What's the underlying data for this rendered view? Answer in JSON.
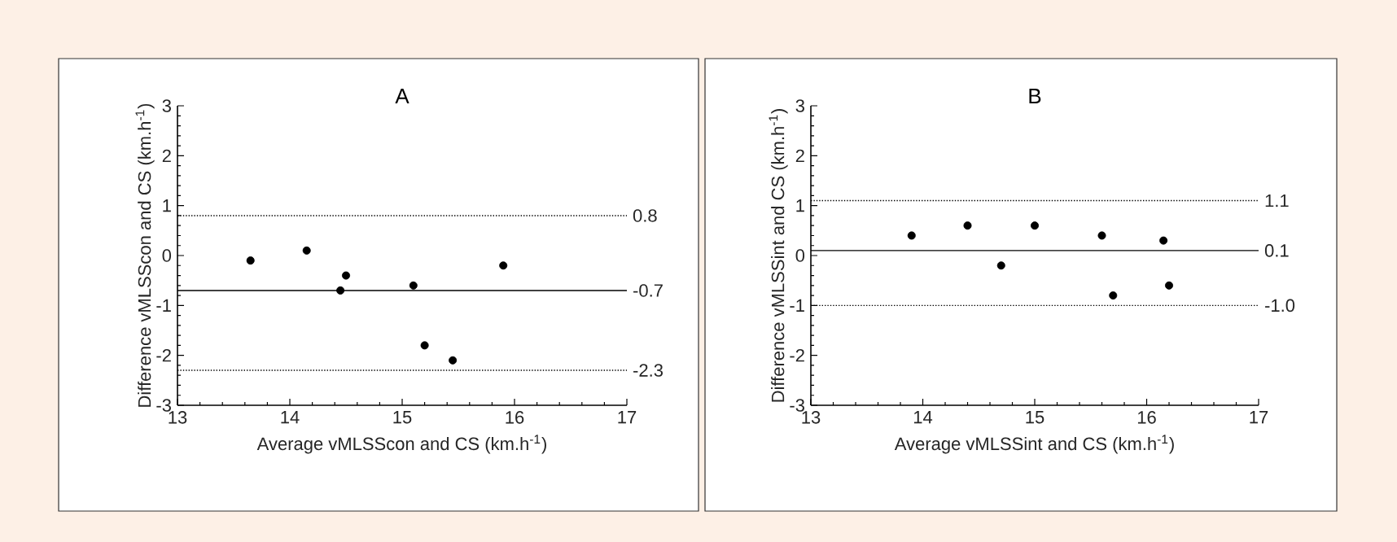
{
  "chart_data": [
    {
      "type": "scatter",
      "title": "A",
      "xlabel": "Average vMLSScon and CS (km.h$^{-1}$)",
      "ylabel": "Difference vMLSScon and CS (km.h$^{-1}$)",
      "xlim": [
        13,
        17
      ],
      "ylim": [
        -3,
        3
      ],
      "xticks": [
        13,
        14,
        15,
        16,
        17
      ],
      "yticks": [
        -3,
        -2,
        -1,
        0,
        1,
        2,
        3
      ],
      "marker": "circle",
      "color": "#000000",
      "x": [
        13.65,
        14.15,
        14.45,
        14.5,
        15.1,
        15.2,
        15.45,
        15.9
      ],
      "values": [
        -0.1,
        0.1,
        -0.7,
        -0.4,
        -0.6,
        -1.8,
        -2.1,
        -0.2
      ],
      "ref_lines": [
        {
          "axis": "y",
          "value": 0.8,
          "label": "0.8",
          "line_style": "dotted"
        },
        {
          "axis": "y",
          "value": -0.7,
          "label": "-0.7",
          "line_style": "solid"
        },
        {
          "axis": "y",
          "value": -2.3,
          "label": "-2.3",
          "line_style": "dotted"
        }
      ]
    },
    {
      "type": "scatter",
      "title": "B",
      "xlabel": "Average vMLSSint and CS (km.h$^{-1}$)",
      "ylabel": "Difference vMLSSint and CS (km.h$^{-1}$)",
      "xlim": [
        13,
        17
      ],
      "ylim": [
        -3,
        3
      ],
      "xticks": [
        13,
        14,
        15,
        16,
        17
      ],
      "yticks": [
        -3,
        -2,
        -1,
        0,
        1,
        2,
        3
      ],
      "marker": "circle",
      "color": "#000000",
      "x": [
        13.9,
        14.4,
        14.7,
        15.0,
        15.6,
        15.7,
        16.15,
        16.2
      ],
      "values": [
        0.4,
        0.6,
        -0.2,
        0.6,
        0.4,
        -0.8,
        0.3,
        -0.6
      ],
      "ref_lines": [
        {
          "axis": "y",
          "value": 1.1,
          "label": "1.1",
          "line_style": "dotted"
        },
        {
          "axis": "y",
          "value": 0.1,
          "label": "0.1",
          "line_style": "solid"
        },
        {
          "axis": "y",
          "value": -1.0,
          "label": "-1.0",
          "line_style": "dotted"
        }
      ]
    }
  ]
}
